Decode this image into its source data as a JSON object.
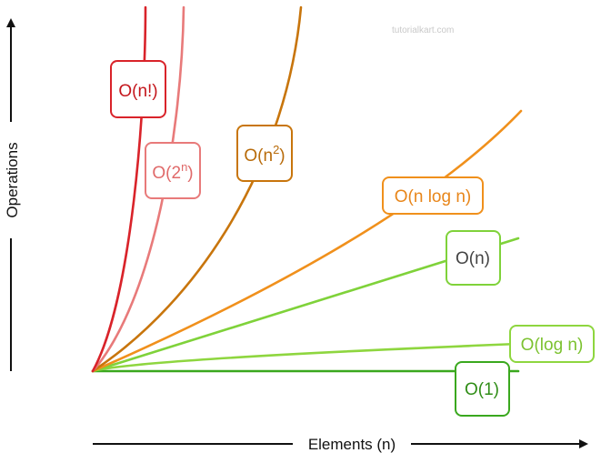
{
  "watermark": "tutorialkart.com",
  "axes": {
    "x_label": "Elements (n)",
    "y_label": "Operations"
  },
  "colors": {
    "axis": "#111111",
    "factorial": "#d9232a",
    "exponential": "#e87a7a",
    "quadratic": "#c8750c",
    "linearithmic": "#f0901c",
    "linear": "#7fd23a",
    "logarithmic": "#8ed63f",
    "constant": "#3aa81e"
  },
  "labels": {
    "factorial": {
      "base": "O(n!)"
    },
    "exponential": {
      "pre": "O(2",
      "sup": "n",
      "post": ")"
    },
    "quadratic": {
      "pre": "O(n",
      "sup": "2",
      "post": ")"
    },
    "linearithmic": {
      "base": "O(n log n)"
    },
    "linear": {
      "base": "O(n)"
    },
    "logarithmic": {
      "base": "O(log n)"
    },
    "constant": {
      "base": "O(1)"
    }
  }
}
